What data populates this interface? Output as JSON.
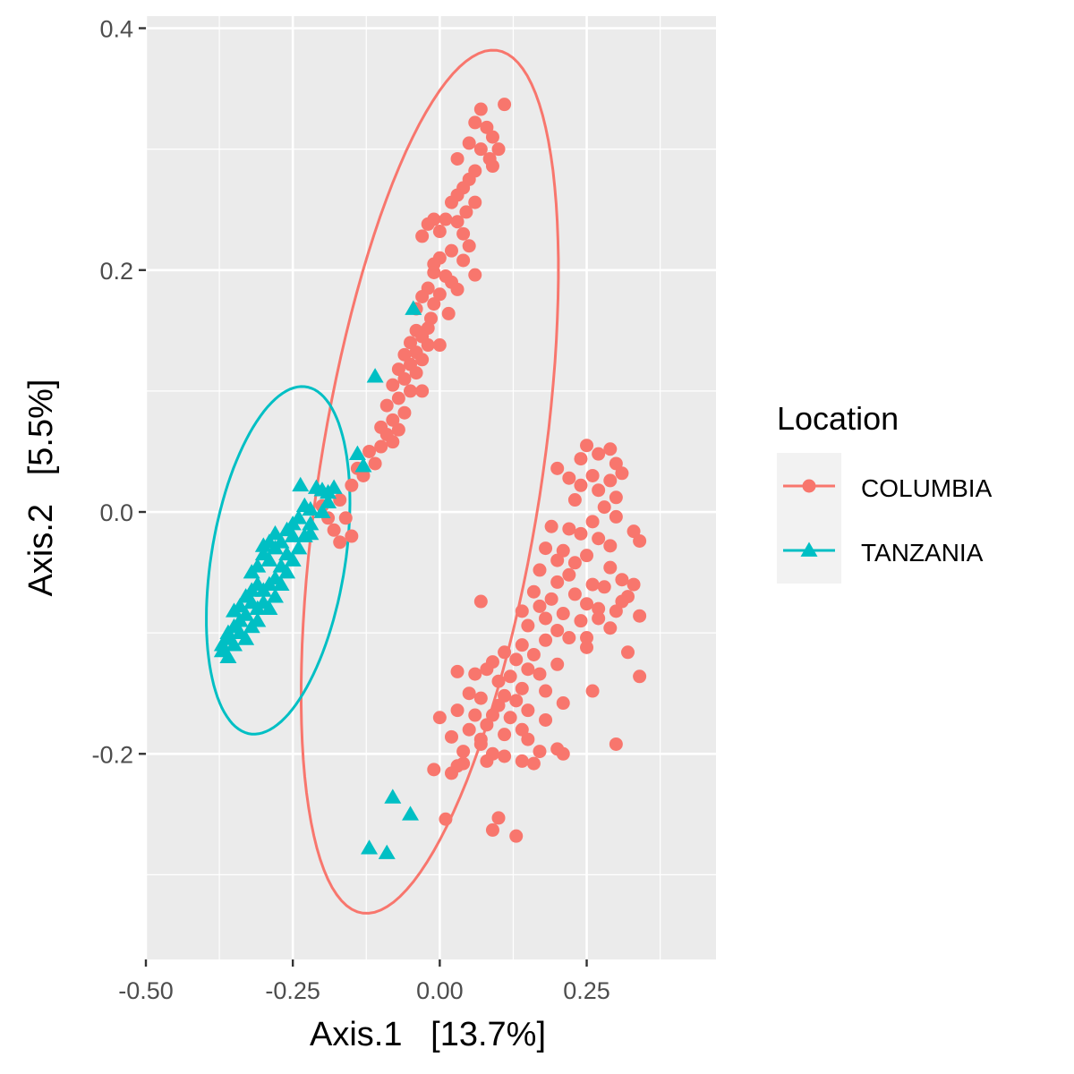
{
  "chart_data": {
    "type": "scatter",
    "xlabel": "Axis.1   [13.7%]",
    "ylabel": "Axis.2   [5.5%]",
    "xlim": [
      -0.5,
      0.47
    ],
    "ylim": [
      -0.37,
      0.41
    ],
    "x_ticks": [
      -0.5,
      -0.25,
      0.0,
      0.25
    ],
    "x_tick_labels": [
      "-0.50",
      "-0.25",
      "0.00",
      "0.25"
    ],
    "y_ticks": [
      -0.2,
      0.0,
      0.2,
      0.4
    ],
    "y_tick_labels": [
      "-0.2",
      "0.0",
      "0.2",
      "0.4"
    ],
    "grid": true,
    "legend": {
      "title": "Location",
      "position": "right",
      "entries": [
        "COLUMBIA",
        "TANZANIA"
      ]
    },
    "series": [
      {
        "name": "COLUMBIA",
        "color": "#F8766D",
        "marker": "circle",
        "ellipse": {
          "center": [
            -0.017,
            0.025
          ],
          "semi_major": 0.378,
          "semi_minor": 0.18,
          "angle_deg": 68
        },
        "points": [
          [
            0.07,
            0.333
          ],
          [
            0.11,
            0.337
          ],
          [
            0.06,
            0.322
          ],
          [
            0.08,
            0.318
          ],
          [
            0.09,
            0.31
          ],
          [
            0.05,
            0.305
          ],
          [
            0.07,
            0.3
          ],
          [
            0.1,
            0.3
          ],
          [
            0.085,
            0.292
          ],
          [
            0.03,
            0.292
          ],
          [
            0.06,
            0.282
          ],
          [
            0.09,
            0.286
          ],
          [
            0.05,
            0.275
          ],
          [
            0.04,
            0.268
          ],
          [
            0.03,
            0.262
          ],
          [
            0.06,
            0.256
          ],
          [
            0.02,
            0.256
          ],
          [
            0.045,
            0.248
          ],
          [
            0.03,
            0.24
          ],
          [
            0.01,
            0.242
          ],
          [
            -0.01,
            0.242
          ],
          [
            -0.02,
            0.238
          ],
          [
            0.0,
            0.232
          ],
          [
            0.04,
            0.23
          ],
          [
            -0.03,
            0.228
          ],
          [
            0.05,
            0.22
          ],
          [
            0.02,
            0.216
          ],
          [
            0.0,
            0.21
          ],
          [
            -0.01,
            0.205
          ],
          [
            0.04,
            0.208
          ],
          [
            0.06,
            0.196
          ],
          [
            -0.01,
            0.198
          ],
          [
            0.01,
            0.195
          ],
          [
            0.02,
            0.19
          ],
          [
            -0.02,
            0.185
          ],
          [
            0.0,
            0.18
          ],
          [
            -0.03,
            0.178
          ],
          [
            0.03,
            0.184
          ],
          [
            -0.01,
            0.172
          ],
          [
            -0.04,
            0.168
          ],
          [
            0.015,
            0.164
          ],
          [
            -0.015,
            0.16
          ],
          [
            -0.02,
            0.152
          ],
          [
            -0.04,
            0.15
          ],
          [
            -0.03,
            0.145
          ],
          [
            -0.05,
            0.14
          ],
          [
            -0.02,
            0.138
          ],
          [
            -0.04,
            0.132
          ],
          [
            -0.06,
            0.13
          ],
          [
            -0.03,
            0.126
          ],
          [
            -0.05,
            0.122
          ],
          [
            -0.07,
            0.118
          ],
          [
            -0.04,
            0.115
          ],
          [
            -0.06,
            0.11
          ],
          [
            -0.08,
            0.105
          ],
          [
            -0.05,
            0.1
          ],
          [
            0.0,
            0.138
          ],
          [
            -0.03,
            0.1
          ],
          [
            -0.07,
            0.094
          ],
          [
            -0.09,
            0.088
          ],
          [
            -0.06,
            0.082
          ],
          [
            -0.08,
            0.076
          ],
          [
            -0.1,
            0.07
          ],
          [
            -0.07,
            0.068
          ],
          [
            -0.09,
            0.064
          ],
          [
            -0.08,
            0.058
          ],
          [
            -0.1,
            0.054
          ],
          [
            -0.12,
            0.05
          ],
          [
            -0.11,
            0.04
          ],
          [
            -0.14,
            0.036
          ],
          [
            -0.13,
            0.03
          ],
          [
            -0.15,
            0.022
          ],
          [
            -0.17,
            0.01
          ],
          [
            -0.2,
            0.005
          ],
          [
            -0.19,
            -0.005
          ],
          [
            -0.16,
            -0.005
          ],
          [
            -0.17,
            -0.025
          ],
          [
            -0.15,
            -0.02
          ],
          [
            -0.18,
            -0.015
          ],
          [
            0.25,
            0.055
          ],
          [
            0.29,
            0.052
          ],
          [
            0.27,
            0.048
          ],
          [
            0.24,
            0.044
          ],
          [
            0.3,
            0.04
          ],
          [
            0.2,
            0.036
          ],
          [
            0.26,
            0.03
          ],
          [
            0.22,
            0.028
          ],
          [
            0.31,
            0.032
          ],
          [
            0.29,
            0.026
          ],
          [
            0.24,
            0.022
          ],
          [
            0.27,
            0.018
          ],
          [
            0.3,
            0.012
          ],
          [
            0.23,
            0.01
          ],
          [
            0.28,
            0.004
          ],
          [
            0.3,
            -0.004
          ],
          [
            0.26,
            -0.008
          ],
          [
            0.19,
            -0.012
          ],
          [
            0.22,
            -0.014
          ],
          [
            0.24,
            -0.018
          ],
          [
            0.27,
            -0.022
          ],
          [
            0.33,
            -0.016
          ],
          [
            0.34,
            -0.024
          ],
          [
            0.29,
            -0.028
          ],
          [
            0.21,
            -0.032
          ],
          [
            0.18,
            -0.03
          ],
          [
            0.2,
            -0.04
          ],
          [
            0.23,
            -0.042
          ],
          [
            0.25,
            -0.036
          ],
          [
            0.29,
            -0.046
          ],
          [
            0.17,
            -0.048
          ],
          [
            0.22,
            -0.052
          ],
          [
            0.2,
            -0.058
          ],
          [
            0.26,
            -0.06
          ],
          [
            0.31,
            -0.056
          ],
          [
            0.28,
            -0.062
          ],
          [
            0.32,
            -0.07
          ],
          [
            0.16,
            -0.066
          ],
          [
            0.23,
            -0.068
          ],
          [
            0.19,
            -0.072
          ],
          [
            0.25,
            -0.076
          ],
          [
            0.27,
            -0.08
          ],
          [
            0.3,
            -0.082
          ],
          [
            0.17,
            -0.078
          ],
          [
            0.21,
            -0.084
          ],
          [
            0.14,
            -0.082
          ],
          [
            0.18,
            -0.088
          ],
          [
            0.24,
            -0.09
          ],
          [
            0.29,
            -0.096
          ],
          [
            0.07,
            -0.074
          ],
          [
            0.15,
            -0.094
          ],
          [
            0.2,
            -0.098
          ],
          [
            0.22,
            -0.104
          ],
          [
            0.18,
            -0.106
          ],
          [
            0.14,
            -0.11
          ],
          [
            0.25,
            -0.112
          ],
          [
            0.16,
            -0.118
          ],
          [
            0.11,
            -0.116
          ],
          [
            0.13,
            -0.122
          ],
          [
            0.2,
            -0.126
          ],
          [
            0.09,
            -0.124
          ],
          [
            0.15,
            -0.13
          ],
          [
            0.17,
            -0.134
          ],
          [
            0.08,
            -0.13
          ],
          [
            0.12,
            -0.136
          ],
          [
            0.1,
            -0.14
          ],
          [
            0.03,
            -0.132
          ],
          [
            0.06,
            -0.134
          ],
          [
            0.14,
            -0.146
          ],
          [
            0.18,
            -0.148
          ],
          [
            0.11,
            -0.152
          ],
          [
            0.05,
            -0.15
          ],
          [
            0.07,
            -0.154
          ],
          [
            0.13,
            -0.156
          ],
          [
            0.21,
            -0.158
          ],
          [
            0.1,
            -0.16
          ],
          [
            0.15,
            -0.164
          ],
          [
            0.09,
            -0.168
          ],
          [
            0.12,
            -0.17
          ],
          [
            0.06,
            -0.168
          ],
          [
            0.18,
            -0.172
          ],
          [
            0.03,
            -0.164
          ],
          [
            0.08,
            -0.176
          ],
          [
            0.14,
            -0.18
          ],
          [
            0.11,
            -0.184
          ],
          [
            0.05,
            -0.18
          ],
          [
            0.07,
            -0.188
          ],
          [
            0.15,
            -0.188
          ],
          [
            0.02,
            -0.186
          ],
          [
            0.0,
            -0.17
          ],
          [
            0.17,
            -0.198
          ],
          [
            0.21,
            -0.2
          ],
          [
            0.2,
            -0.196
          ],
          [
            0.11,
            -0.202
          ],
          [
            0.14,
            -0.206
          ],
          [
            0.07,
            -0.192
          ],
          [
            0.04,
            -0.198
          ],
          [
            0.09,
            -0.2
          ],
          [
            0.3,
            -0.192
          ],
          [
            0.02,
            -0.216
          ],
          [
            0.04,
            -0.208
          ],
          [
            0.03,
            -0.21
          ],
          [
            0.08,
            -0.206
          ],
          [
            0.16,
            -0.208
          ],
          [
            0.26,
            -0.148
          ],
          [
            0.34,
            -0.136
          ],
          [
            0.32,
            -0.116
          ],
          [
            0.25,
            -0.104
          ],
          [
            0.27,
            -0.088
          ],
          [
            0.33,
            -0.06
          ],
          [
            0.31,
            -0.074
          ],
          [
            0.34,
            -0.086
          ],
          [
            -0.01,
            -0.213
          ],
          [
            0.01,
            -0.254
          ],
          [
            0.09,
            -0.263
          ],
          [
            0.1,
            -0.253
          ],
          [
            0.13,
            -0.268
          ]
        ]
      },
      {
        "name": "TANZANIA",
        "color": "#00BFC4",
        "marker": "triangle",
        "ellipse": {
          "center": [
            -0.275,
            -0.04
          ],
          "semi_major": 0.156,
          "semi_minor": 0.106,
          "angle_deg": 58
        },
        "points": [
          [
            -0.237,
            0.022
          ],
          [
            -0.21,
            0.02
          ],
          [
            -0.2,
            0.018
          ],
          [
            -0.18,
            0.02
          ],
          [
            -0.19,
            0.016
          ],
          [
            -0.23,
            0.005
          ],
          [
            -0.22,
            0.002
          ],
          [
            -0.25,
            -0.01
          ],
          [
            -0.26,
            -0.015
          ],
          [
            -0.24,
            -0.005
          ],
          [
            -0.22,
            -0.01
          ],
          [
            -0.25,
            -0.02
          ],
          [
            -0.27,
            -0.025
          ],
          [
            -0.28,
            -0.03
          ],
          [
            -0.24,
            -0.03
          ],
          [
            -0.23,
            -0.02
          ],
          [
            -0.26,
            -0.035
          ],
          [
            -0.29,
            -0.04
          ],
          [
            -0.3,
            -0.035
          ],
          [
            -0.31,
            -0.045
          ],
          [
            -0.32,
            -0.05
          ],
          [
            -0.27,
            -0.045
          ],
          [
            -0.25,
            -0.04
          ],
          [
            -0.28,
            -0.055
          ],
          [
            -0.29,
            -0.06
          ],
          [
            -0.3,
            -0.065
          ],
          [
            -0.32,
            -0.065
          ],
          [
            -0.33,
            -0.07
          ],
          [
            -0.28,
            -0.07
          ],
          [
            -0.3,
            -0.075
          ],
          [
            -0.31,
            -0.08
          ],
          [
            -0.33,
            -0.085
          ],
          [
            -0.34,
            -0.09
          ],
          [
            -0.35,
            -0.095
          ],
          [
            -0.32,
            -0.095
          ],
          [
            -0.34,
            -0.1
          ],
          [
            -0.36,
            -0.105
          ],
          [
            -0.37,
            -0.11
          ],
          [
            -0.35,
            -0.11
          ],
          [
            -0.33,
            -0.105
          ],
          [
            -0.37,
            -0.115
          ],
          [
            -0.36,
            -0.12
          ],
          [
            -0.31,
            -0.09
          ],
          [
            -0.29,
            -0.08
          ],
          [
            -0.27,
            -0.06
          ],
          [
            -0.29,
            -0.025
          ],
          [
            -0.28,
            -0.018
          ],
          [
            -0.3,
            -0.028
          ],
          [
            -0.26,
            -0.05
          ],
          [
            -0.31,
            -0.06
          ],
          [
            -0.32,
            -0.075
          ],
          [
            -0.34,
            -0.078
          ],
          [
            -0.36,
            -0.1
          ],
          [
            -0.35,
            -0.082
          ],
          [
            -0.22,
            -0.018
          ],
          [
            -0.2,
            0.0
          ],
          [
            -0.19,
            0.008
          ],
          [
            -0.14,
            0.048
          ],
          [
            -0.13,
            0.038
          ],
          [
            -0.11,
            0.112
          ],
          [
            -0.045,
            0.168
          ],
          [
            -0.08,
            -0.236
          ],
          [
            -0.05,
            -0.25
          ],
          [
            -0.12,
            -0.278
          ],
          [
            -0.09,
            -0.282
          ]
        ]
      }
    ]
  }
}
